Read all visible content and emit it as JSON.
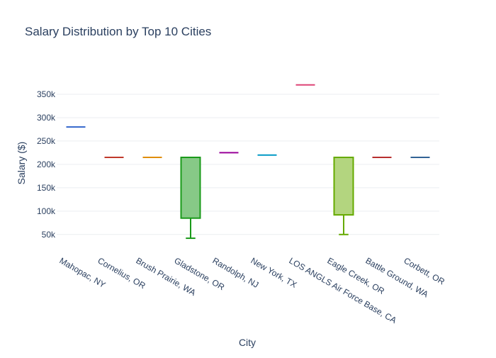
{
  "chart_data": {
    "type": "box",
    "title": "Salary Distribution by Top 10 Cities",
    "xlabel": "City",
    "ylabel": "Salary ($)",
    "ylim": [
      33000,
      400000
    ],
    "yticks": [
      50000,
      100000,
      150000,
      200000,
      250000,
      300000,
      350000
    ],
    "ytick_labels": [
      "50k",
      "100k",
      "150k",
      "200k",
      "250k",
      "300k",
      "350k"
    ],
    "grid": true,
    "legend": "none",
    "boxes": [
      {
        "category": "Mahopac, NY",
        "color": "#3366cc",
        "fill": "#3366cc",
        "min": 280000,
        "q1": 280000,
        "median": 280000,
        "q3": 280000,
        "max": 280000
      },
      {
        "category": "Cornelius, OR",
        "color": "#c0392b",
        "fill": "#c0392b",
        "min": 215000,
        "q1": 215000,
        "median": 215000,
        "q3": 215000,
        "max": 215000
      },
      {
        "category": "Brush Prairie, WA",
        "color": "#e08e0b",
        "fill": "#e08e0b",
        "min": 215000,
        "q1": 215000,
        "median": 215000,
        "q3": 215000,
        "max": 215000
      },
      {
        "category": "Gladstone, OR",
        "color": "#1a9a1a",
        "fill": "#87c987",
        "min": 42000,
        "q1": 85000,
        "median": 215000,
        "q3": 215000,
        "max": 215000
      },
      {
        "category": "Randolph, NJ",
        "color": "#990099",
        "fill": "#990099",
        "min": 225000,
        "q1": 225000,
        "median": 225000,
        "q3": 225000,
        "max": 225000
      },
      {
        "category": "New York, TX",
        "color": "#0099c6",
        "fill": "#0099c6",
        "min": 220000,
        "q1": 220000,
        "median": 220000,
        "q3": 220000,
        "max": 220000
      },
      {
        "category": "LOS ANGLS Air Force Base, CA",
        "color": "#dd4477",
        "fill": "#dd4477",
        "min": 370000,
        "q1": 370000,
        "median": 370000,
        "q3": 370000,
        "max": 370000
      },
      {
        "category": "Eagle Creek, OR",
        "color": "#66aa00",
        "fill": "#b3d57f",
        "min": 50000,
        "q1": 92000,
        "median": 215000,
        "q3": 215000,
        "max": 215000
      },
      {
        "category": "Battle Ground, WA",
        "color": "#b82e2e",
        "fill": "#b82e2e",
        "min": 215000,
        "q1": 215000,
        "median": 215000,
        "q3": 215000,
        "max": 215000
      },
      {
        "category": "Corbett, OR",
        "color": "#316395",
        "fill": "#316395",
        "min": 215000,
        "q1": 215000,
        "median": 215000,
        "q3": 215000,
        "max": 215000
      }
    ]
  }
}
